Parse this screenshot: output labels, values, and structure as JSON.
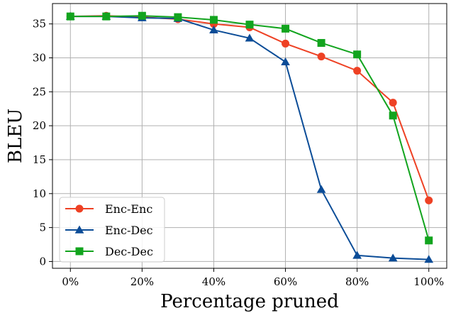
{
  "chart_data": {
    "type": "line",
    "title": "",
    "xlabel": "Percentage pruned",
    "ylabel": "BLEU",
    "x": [
      0,
      10,
      20,
      30,
      40,
      50,
      60,
      70,
      80,
      90,
      100
    ],
    "xticks": [
      0,
      20,
      40,
      60,
      80,
      100
    ],
    "xtick_labels": [
      "0%",
      "20%",
      "40%",
      "60%",
      "80%",
      "100%"
    ],
    "yticks": [
      0,
      5,
      10,
      15,
      20,
      25,
      30,
      35
    ],
    "ytick_labels": [
      "0",
      "5",
      "10",
      "15",
      "20",
      "25",
      "30",
      "35"
    ],
    "xlim": [
      -5,
      105
    ],
    "ylim": [
      -1,
      38
    ],
    "grid": true,
    "legend_position": "lower-left",
    "series": [
      {
        "name": "Enc-Enc",
        "marker": "circle",
        "color": "#EE4124",
        "values": [
          36.1,
          36.2,
          36.0,
          35.7,
          35.0,
          34.5,
          32.1,
          30.2,
          28.1,
          23.4,
          9.0
        ]
      },
      {
        "name": "Enc-Dec",
        "marker": "triangle",
        "color": "#0B4C97",
        "values": [
          36.1,
          36.1,
          35.9,
          35.8,
          34.1,
          32.9,
          29.4,
          10.6,
          0.9,
          0.5,
          0.3
        ]
      },
      {
        "name": "Dec-Dec",
        "marker": "square",
        "color": "#12A41E",
        "values": [
          36.1,
          36.1,
          36.2,
          36.0,
          35.6,
          34.9,
          34.3,
          32.2,
          30.5,
          21.5,
          3.1
        ]
      }
    ]
  }
}
